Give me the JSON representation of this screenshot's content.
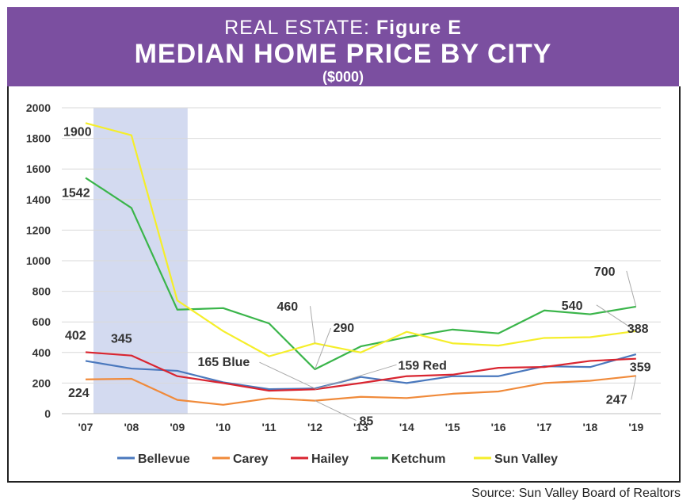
{
  "header": {
    "line1_plain": "REAL ESTATE: ",
    "line1_bold": "Figure E",
    "title": "MEDIAN HOME PRICE BY CITY",
    "subtitle": "($000)"
  },
  "source": "Source: Sun Valley Board of Realtors",
  "chart_data": {
    "type": "line",
    "title": "MEDIAN HOME PRICE BY CITY",
    "subtitle": "($000)",
    "categories": [
      "'07",
      "'08",
      "'09",
      "'10",
      "'11",
      "'12",
      "'13",
      "'14",
      "'15",
      "'16",
      "'17",
      "'18",
      "'19"
    ],
    "ylim": [
      0,
      2000
    ],
    "yticks": [
      0,
      200,
      400,
      600,
      800,
      1000,
      1200,
      1400,
      1600,
      1800,
      2000
    ],
    "grid": true,
    "legend_position": "bottom",
    "shaded_region": {
      "from": "'07",
      "to": "'09",
      "color": "#d3daf0"
    },
    "series": [
      {
        "name": "Bellevue",
        "color": "#4a78bd",
        "values": [
          345,
          295,
          280,
          205,
          160,
          165,
          240,
          200,
          245,
          245,
          310,
          305,
          388
        ]
      },
      {
        "name": "Carey",
        "color": "#f08a3a",
        "values": [
          224,
          228,
          90,
          58,
          100,
          85,
          110,
          102,
          130,
          145,
          200,
          215,
          247
        ]
      },
      {
        "name": "Hailey",
        "color": "#d92530",
        "values": [
          402,
          380,
          245,
          200,
          150,
          159,
          200,
          245,
          255,
          300,
          305,
          345,
          359
        ]
      },
      {
        "name": "Ketchum",
        "color": "#3ab54a",
        "values": [
          1542,
          1345,
          680,
          690,
          590,
          290,
          440,
          500,
          550,
          525,
          675,
          650,
          700
        ]
      },
      {
        "name": "Sun Valley",
        "color": "#f5ee2a",
        "values": [
          1900,
          1820,
          740,
          540,
          375,
          460,
          400,
          535,
          460,
          445,
          495,
          500,
          540
        ]
      }
    ],
    "annotations": [
      {
        "text": "1900",
        "x": "'07",
        "y": 1900
      },
      {
        "text": "1542",
        "x": "'07",
        "y": 1542
      },
      {
        "text": "402",
        "x": "'07",
        "y": 402
      },
      {
        "text": "345",
        "x": "'07",
        "y": 345
      },
      {
        "text": "224",
        "x": "'07",
        "y": 224
      },
      {
        "text": "460",
        "x": "'12",
        "y": 460
      },
      {
        "text": "290",
        "x": "'12",
        "y": 290
      },
      {
        "text": "165 Blue",
        "x": "'12",
        "y": 165
      },
      {
        "text": "159 Red",
        "x": "'12",
        "y": 159
      },
      {
        "text": "85",
        "x": "'12",
        "y": 85
      },
      {
        "text": "700",
        "x": "'19",
        "y": 700
      },
      {
        "text": "540",
        "x": "'19",
        "y": 540
      },
      {
        "text": "388",
        "x": "'19",
        "y": 388
      },
      {
        "text": "359",
        "x": "'19",
        "y": 359
      },
      {
        "text": "247",
        "x": "'19",
        "y": 247
      }
    ]
  }
}
